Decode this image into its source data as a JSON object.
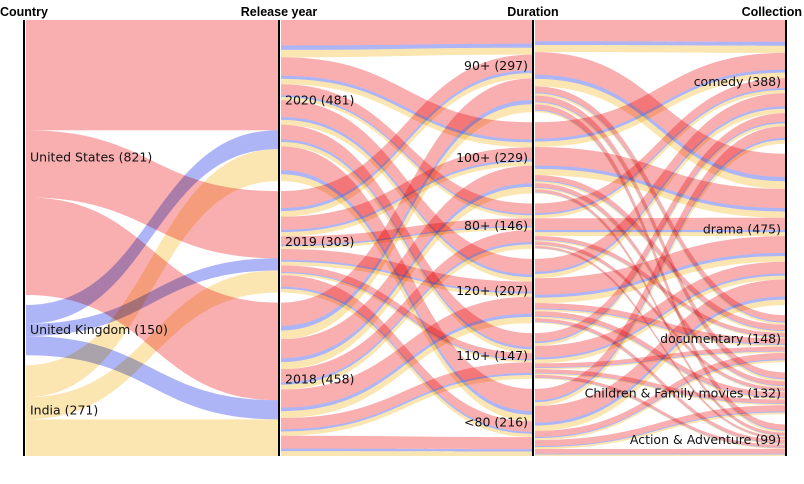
{
  "chart_data": {
    "type": "parallel-sets",
    "title": "",
    "colors": {
      "United States": "#f46b6f",
      "United Kingdom": "#6b78f0",
      "India": "#f8d271"
    },
    "dimensions": [
      {
        "name": "Country",
        "categories": [
          {
            "label": "United States",
            "count": 821
          },
          {
            "label": "United Kingdom",
            "count": 150
          },
          {
            "label": "India",
            "count": 271
          }
        ]
      },
      {
        "name": "Release year",
        "categories": [
          {
            "label": "2020",
            "count": 481
          },
          {
            "label": "2019",
            "count": 303
          },
          {
            "label": "2018",
            "count": 458
          }
        ]
      },
      {
        "name": "Duration",
        "categories": [
          {
            "label": "90+",
            "count": 297
          },
          {
            "label": "100+",
            "count": 229
          },
          {
            "label": "80+",
            "count": 146
          },
          {
            "label": "120+",
            "count": 207
          },
          {
            "label": "110+",
            "count": 147
          },
          {
            "label": "<80",
            "count": 216
          }
        ]
      },
      {
        "name": "Collection",
        "categories": [
          {
            "label": "comedy",
            "count": 388
          },
          {
            "label": "drama",
            "count": 475
          },
          {
            "label": "documentary",
            "count": 148
          },
          {
            "label": "Children & Family movies",
            "count": 132
          },
          {
            "label": "Action & Adventure",
            "count": 99
          }
        ]
      }
    ]
  }
}
